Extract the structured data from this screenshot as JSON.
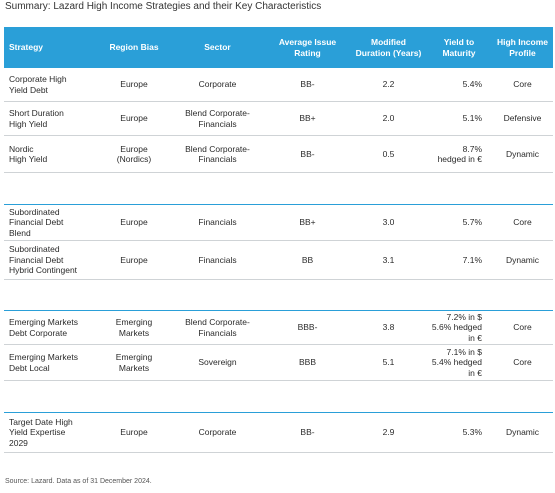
{
  "title": "Summary: Lazard High Income Strategies and their Key Characteristics",
  "headers": [
    "Strategy",
    "Region Bias",
    "Sector",
    "Average Issue\nRating",
    "Modified\nDuration (Years)",
    "Yield to\nMaturity",
    "High Income\nProfile"
  ],
  "groups": [
    {
      "rows": [
        [
          "Corporate High\nYield Debt",
          "Europe",
          "Corporate",
          "BB-",
          "2.2",
          "5.4%",
          "Core"
        ],
        [
          "Short Duration\nHigh Yield",
          "Europe",
          "Blend Corporate-\nFinancials",
          "BB+",
          "2.0",
          "5.1%",
          "Defensive"
        ],
        [
          "Nordic\nHigh Yield",
          "Europe\n(Nordics)",
          "Blend Corporate-\nFinancials",
          "BB-",
          "0.5",
          "8.7%\nhedged in €",
          "Dynamic"
        ]
      ]
    },
    {
      "rows": [
        [
          "Subordinated\nFinancial Debt\nBlend",
          "Europe",
          "Financials",
          "BB+",
          "3.0",
          "5.7%",
          "Core"
        ],
        [
          "Subordinated\nFinancial Debt\nHybrid Contingent",
          "Europe",
          "Financials",
          "BB",
          "3.1",
          "7.1%",
          "Dynamic"
        ]
      ]
    },
    {
      "rows": [
        [
          "Emerging Markets\nDebt Corporate",
          "Emerging\nMarkets",
          "Blend Corporate-\nFinancials",
          "BBB-",
          "3.8",
          "7.2% in $\n5.6% hedged in €",
          "Core"
        ],
        [
          "Emerging Markets\nDebt Local",
          "Emerging\nMarkets",
          "Sovereign",
          "BBB",
          "5.1",
          "7.1% in $\n5.4% hedged in €",
          "Core"
        ]
      ]
    },
    {
      "rows": [
        [
          "Target Date High\nYield Expertise\n2029",
          "Europe",
          "Corporate",
          "BB-",
          "2.9",
          "5.3%",
          "Dynamic"
        ]
      ]
    }
  ],
  "source": "Source: Lazard. Data as of 31 December 2024."
}
